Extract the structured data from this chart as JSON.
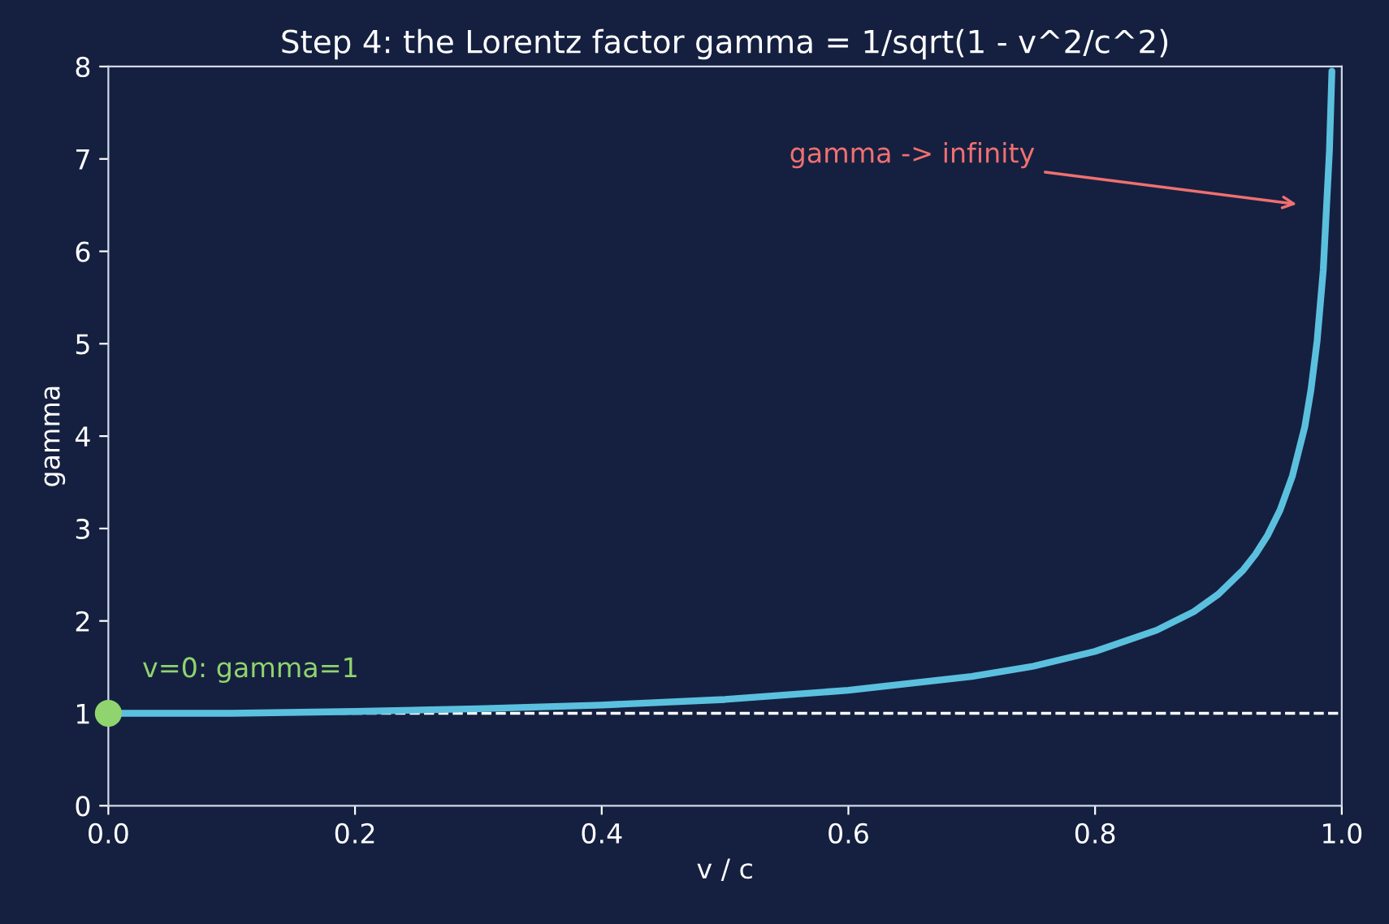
{
  "chart_data": {
    "type": "line",
    "title": "Step 4: the Lorentz factor gamma = 1/sqrt(1 - v^2/c^2)",
    "xlabel": "v / c",
    "ylabel": "gamma",
    "series": [
      {
        "color": "#5bc0de",
        "x": [
          0,
          0.1,
          0.2,
          0.3,
          0.4,
          0.5,
          0.6,
          0.7,
          0.75,
          0.8,
          0.85,
          0.88,
          0.9,
          0.92,
          0.93,
          0.94,
          0.95,
          0.96,
          0.97,
          0.975,
          0.98,
          0.985,
          0.99,
          0.992
        ],
        "values": [
          1,
          1.0,
          1.02,
          1.05,
          1.09,
          1.15,
          1.25,
          1.4,
          1.51,
          1.67,
          1.9,
          2.1,
          2.29,
          2.55,
          2.72,
          2.93,
          3.2,
          3.57,
          4.1,
          4.5,
          5.03,
          5.8,
          7.09,
          7.95
        ]
      },
      {
        "type": "scatter",
        "color": "#8fd46e",
        "x": [
          0
        ],
        "values": [
          1
        ]
      }
    ],
    "xlim": [
      0,
      1
    ],
    "ylim": [
      0,
      8
    ],
    "xticks": [
      {
        "value": 0,
        "label": "0.0"
      },
      0.2,
      0.4,
      0.6,
      0.8,
      {
        "value": 1,
        "label": "1.0"
      }
    ],
    "yticks": [
      0,
      1,
      2,
      3,
      4,
      5,
      6,
      7,
      8
    ],
    "ref_lines": [
      {
        "axis": "y",
        "value": 1,
        "color": "#ffffff",
        "line_style": "dashed"
      }
    ],
    "annotations": [
      {
        "text": "v=0: gamma=1",
        "x": 0,
        "y": 1
      },
      "gamma -> infinity"
    ],
    "grid": false,
    "legend": false
  }
}
